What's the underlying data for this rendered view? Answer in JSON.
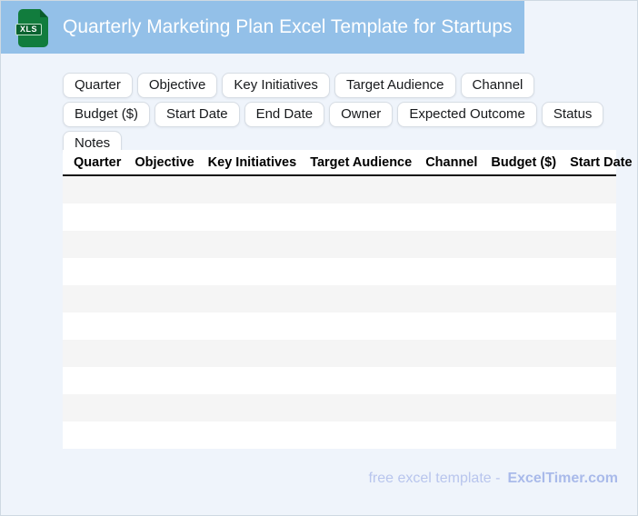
{
  "header": {
    "title": "Quarterly Marketing Plan Excel Template for Startups",
    "icon_label": "XLS"
  },
  "chips": {
    "items": [
      "Quarter",
      "Objective",
      "Key Initiatives",
      "Target Audience",
      "Channel",
      "Budget ($)",
      "Start Date",
      "End Date",
      "Owner",
      "Expected Outcome",
      "Status",
      "Notes"
    ]
  },
  "table": {
    "columns": [
      "Quarter",
      "Objective",
      "Key Initiatives",
      "Target Audience",
      "Channel",
      "Budget ($)",
      "Start Date"
    ],
    "empty_row_count": 10
  },
  "footer": {
    "text": "free excel template -",
    "brand": "ExcelTimer.com"
  },
  "colors": {
    "header_bg": "#93c0e8",
    "page_bg": "#eff4fb",
    "icon_green": "#117c3d",
    "icon_fold_green": "#0a5c2b",
    "row_stripe": "#f5f5f5",
    "footer_text": "#b8c5ed",
    "brand_text": "#a9baea"
  }
}
